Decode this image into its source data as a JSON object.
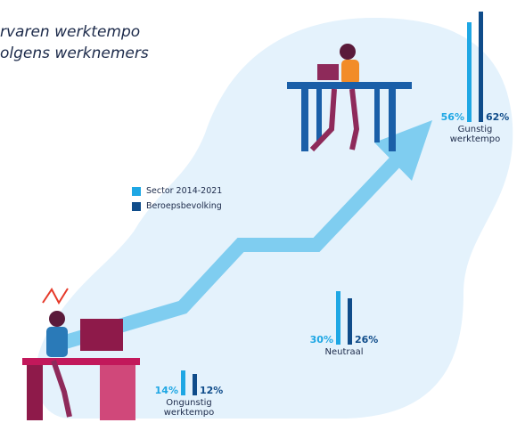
{
  "chart_data": {
    "type": "bar",
    "title": [
      "rvaren werktempo",
      "olgens werknemers"
    ],
    "categories": [
      "Gunstig werktempo",
      "Neutraal",
      "Ongunstig werktempo"
    ],
    "series": [
      {
        "name": "Sector 2014-2021",
        "color": "#1ea7e4",
        "values": [
          56,
          30,
          14
        ],
        "value_labels": [
          "56%",
          "30%",
          "14%"
        ]
      },
      {
        "name": "Beroepsbevolking",
        "color": "#0f4c8a",
        "values": [
          62,
          26,
          12
        ],
        "value_labels": [
          "62%",
          "26%",
          "12%"
        ]
      }
    ]
  }
}
